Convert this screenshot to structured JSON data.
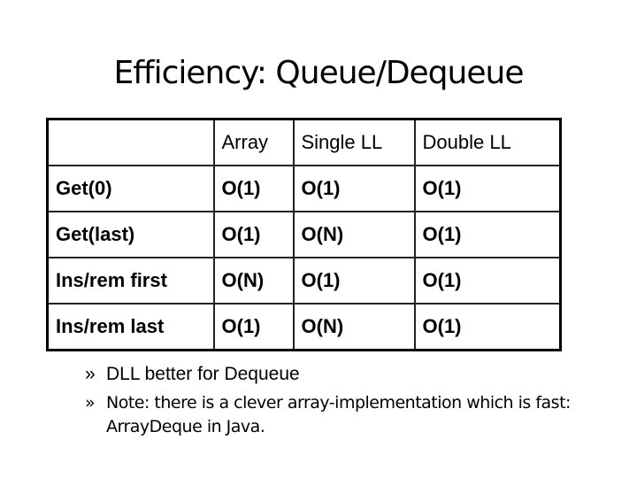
{
  "title": "Efficiency: Queue/Dequeue",
  "table": {
    "columns": [
      "Array",
      "Single LL",
      "Double LL"
    ],
    "rows": [
      [
        "Get(0)",
        "O(1)",
        "O(1)",
        "O(1)"
      ],
      [
        "Get(last)",
        "O(1)",
        "O(N)",
        "O(1)"
      ],
      [
        "Ins/rem first",
        "O(N)",
        "O(1)",
        "O(1)"
      ],
      [
        "Ins/rem last",
        "O(1)",
        "O(N)",
        "O(1)"
      ]
    ]
  },
  "bullets": [
    "DLL better for Dequeue",
    "Note: there is a clever array-implementation which is fast: ArrayDeque in Java."
  ]
}
